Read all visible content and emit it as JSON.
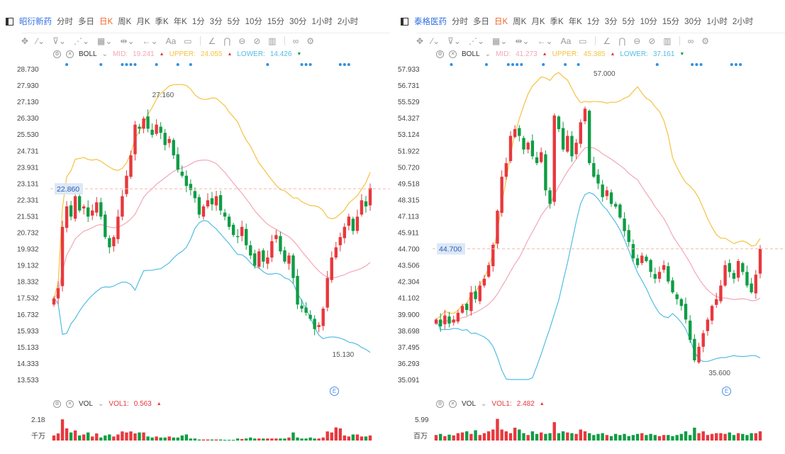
{
  "colors": {
    "up": "#e8383d",
    "down": "#0f9d45",
    "mid": "#f2a7b6",
    "upper": "#f5c242",
    "lower": "#52bde3",
    "accent": "#2f6fe0",
    "active": "#f0672c",
    "dot": "#2f8fe0"
  },
  "periods": [
    "分时",
    "多日",
    "日K",
    "周K",
    "月K",
    "季K",
    "年K",
    "1分",
    "3分",
    "5分",
    "10分",
    "15分",
    "30分",
    "1小时",
    "2小时"
  ],
  "active_period": "日K",
  "tools": [
    "move-icon",
    "line-tool-icon",
    "channel-tool-icon",
    "wave-tool-icon",
    "fib-tool-icon",
    "measure-tool-icon",
    "arrow-tool-icon",
    "text-tool-icon",
    "comment-tool-icon",
    "angle-tool-icon",
    "magnet-icon",
    "lock-icon",
    "hide-icon",
    "trash-icon",
    "link-icon",
    "settings-icon"
  ],
  "panels": [
    {
      "stock": "昭衍新药",
      "boll": {
        "name": "BOLL",
        "mid_label": "MID:",
        "mid": "19.241",
        "upper_label": "UPPER:",
        "upper": "24.055",
        "lower_label": "LOWER:",
        "lower": "14.426",
        "mid_dir": "up",
        "upper_dir": "up",
        "lower_dir": "down"
      },
      "vol": {
        "name": "VOL",
        "vol1_label": "VOL1:",
        "vol1": "0.563",
        "max_label": "2.18",
        "unit": "千万",
        "max": 2.18
      },
      "y_ticks": [
        "28.730",
        "27.930",
        "27.130",
        "26.330",
        "25.530",
        "24.731",
        "23.931",
        "23.131",
        "22.331",
        "21.531",
        "20.732",
        "19.932",
        "19.132",
        "18.332",
        "17.532",
        "16.732",
        "15.933",
        "15.133",
        "14.333",
        "13.533"
      ],
      "ylim": [
        13.533,
        28.73
      ],
      "current_price": "22.860",
      "high_note": "27.160",
      "low_note": "15.130",
      "closes": [
        17.5,
        18,
        21,
        22,
        21.5,
        22.5,
        21.8,
        22,
        21.5,
        21.8,
        22.2,
        21.5,
        20.5,
        20,
        20.5,
        21.5,
        22.5,
        23.5,
        24.5,
        26,
        25.8,
        26.3,
        25.8,
        25.5,
        26,
        25.6,
        25,
        25.3,
        24.5,
        23.8,
        23.5,
        23,
        22.8,
        22.4,
        21.6,
        22,
        22.3,
        22.1,
        22.5,
        21.8,
        21.5,
        21,
        20.6,
        20.5,
        21,
        20.1,
        19.6,
        19.1,
        19.8,
        19.3,
        19.5,
        20.3,
        20.6,
        19.8,
        19.3,
        19.6,
        18.5,
        17.2,
        17,
        16.8,
        16.5,
        16,
        16.2,
        17,
        18.5,
        19.5,
        20,
        20.5,
        21,
        21.5,
        20.8,
        21.5,
        22.3,
        22,
        22.9
      ],
      "volumes": [
        0.5,
        0.7,
        2.1,
        1.2,
        0.8,
        1,
        0.5,
        0.6,
        0.8,
        0.4,
        0.7,
        0.3,
        0.5,
        0.6,
        0.4,
        0.6,
        0.9,
        0.8,
        0.9,
        0.7,
        0.8,
        0.8,
        0.4,
        0.3,
        0.4,
        0.3,
        0.3,
        0.4,
        0.3,
        0.3,
        0.5,
        0.6,
        0.2,
        0.2,
        0.1,
        0.1,
        0.1,
        0.1,
        0.1,
        0.1,
        0.05,
        0.05,
        0.05,
        0.2,
        0.15,
        0.2,
        0.3,
        0.2,
        0.2,
        0.2,
        0.2,
        0.2,
        0.2,
        0.2,
        0.2,
        0.3,
        0.8,
        0.3,
        0.2,
        0.2,
        0.3,
        0.2,
        0.2,
        0.3,
        0.9,
        0.8,
        1.3,
        1.2,
        0.5,
        0.4,
        0.6,
        0.6,
        0.4,
        0.4,
        0.5
      ]
    },
    {
      "stock": "泰格医药",
      "boll": {
        "name": "BOLL",
        "mid_label": "MID:",
        "mid": "41.273",
        "upper_label": "UPPER:",
        "upper": "45.385",
        "lower_label": "LOWER:",
        "lower": "37.161",
        "mid_dir": "up",
        "upper_dir": "up",
        "lower_dir": "down"
      },
      "vol": {
        "name": "VOL",
        "vol1_label": "VOL1:",
        "vol1": "2.482",
        "max_label": "5.99",
        "unit": "百万",
        "max": 5.99
      },
      "y_ticks": [
        "57.933",
        "56.731",
        "55.529",
        "54.327",
        "53.124",
        "51.922",
        "50.720",
        "49.518",
        "48.315",
        "47.113",
        "45.911",
        "44.700",
        "43.506",
        "42.304",
        "41.102",
        "39.900",
        "38.698",
        "37.495",
        "36.293",
        "35.091"
      ],
      "ylim": [
        35.091,
        57.933
      ],
      "current_price": "44.700",
      "high_note": "57.000",
      "low_note": "35.600",
      "closes": [
        39.5,
        39,
        39.8,
        39.2,
        39.5,
        40,
        40.5,
        40.2,
        41.5,
        41,
        42,
        42.5,
        43.5,
        45,
        47.5,
        50,
        51,
        53,
        53.5,
        53,
        52,
        52.5,
        51.5,
        51,
        51.8,
        49,
        48,
        54.5,
        53.5,
        52,
        53,
        51.5,
        52.5,
        54,
        55,
        51,
        50,
        49.5,
        48.5,
        49,
        48,
        47.8,
        47,
        46,
        45.2,
        44,
        43.5,
        44.2,
        43.8,
        43,
        42.5,
        43,
        43.5,
        42.3,
        41.5,
        41,
        40.5,
        39.5,
        38,
        36.5,
        37.5,
        38.5,
        39.5,
        40.5,
        41,
        42,
        43.5,
        43,
        42.5,
        43.8,
        43,
        42,
        41.5,
        42.8,
        44.7
      ],
      "volumes": [
        1.5,
        1.8,
        1.2,
        1.6,
        1.4,
        2,
        2.2,
        2.5,
        1.8,
        2.8,
        1.5,
        2,
        2.5,
        3,
        5.9,
        3,
        2.5,
        2,
        3.5,
        3,
        2,
        1.5,
        2.5,
        1.8,
        2.2,
        1.8,
        2,
        5,
        2,
        2.5,
        2.2,
        2,
        1.8,
        3,
        2.5,
        2,
        1.5,
        1.8,
        2,
        1.5,
        1.2,
        1.8,
        1.5,
        1.8,
        1.2,
        1.5,
        1.8,
        2,
        1.5,
        1.8,
        1.5,
        1.2,
        1.5,
        1.5,
        1.2,
        1.5,
        1.8,
        2.5,
        1.5,
        3.5,
        2,
        2.5,
        1.5,
        1.8,
        2,
        2,
        1.8,
        2.2,
        1.5,
        2,
        1.8,
        1.5,
        2,
        2,
        2.5
      ]
    }
  ]
}
